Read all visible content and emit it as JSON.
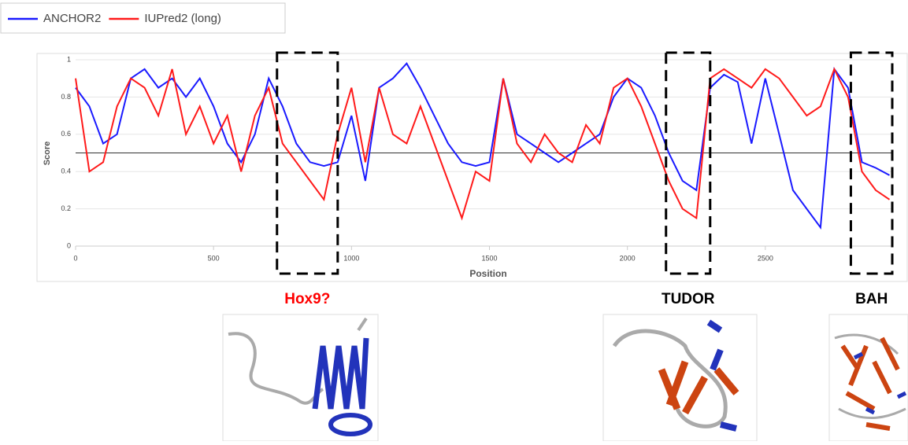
{
  "chart_data": {
    "type": "line",
    "x_label": "Position",
    "y_label": "Score",
    "x": [
      0,
      50,
      100,
      150,
      200,
      250,
      300,
      350,
      400,
      450,
      500,
      550,
      600,
      650,
      700,
      750,
      800,
      850,
      900,
      950,
      1000,
      1050,
      1100,
      1150,
      1200,
      1250,
      1300,
      1350,
      1400,
      1450,
      1500,
      1550,
      1600,
      1650,
      1700,
      1750,
      1800,
      1850,
      1900,
      1950,
      2000,
      2050,
      2100,
      2150,
      2200,
      2250,
      2300,
      2350,
      2400,
      2450,
      2500,
      2550,
      2600,
      2650,
      2700,
      2750,
      2800,
      2850,
      2900,
      2950
    ],
    "series": [
      {
        "name": "ANCHOR2",
        "color": "#1a1aff",
        "values": [
          0.85,
          0.75,
          0.55,
          0.6,
          0.9,
          0.95,
          0.85,
          0.9,
          0.8,
          0.9,
          0.75,
          0.55,
          0.45,
          0.6,
          0.9,
          0.75,
          0.55,
          0.45,
          0.43,
          0.45,
          0.7,
          0.35,
          0.85,
          0.9,
          0.98,
          0.85,
          0.7,
          0.55,
          0.45,
          0.43,
          0.45,
          0.9,
          0.6,
          0.55,
          0.5,
          0.45,
          0.5,
          0.55,
          0.6,
          0.8,
          0.9,
          0.85,
          0.7,
          0.5,
          0.35,
          0.3,
          0.85,
          0.92,
          0.88,
          0.55,
          0.9,
          0.6,
          0.3,
          0.2,
          0.1,
          0.95,
          0.85,
          0.45,
          0.42,
          0.38
        ]
      },
      {
        "name": "IUPred2 (long)",
        "color": "#ff1a1a",
        "values": [
          0.9,
          0.4,
          0.45,
          0.75,
          0.9,
          0.85,
          0.7,
          0.95,
          0.6,
          0.75,
          0.55,
          0.7,
          0.4,
          0.7,
          0.85,
          0.55,
          0.45,
          0.35,
          0.25,
          0.6,
          0.85,
          0.45,
          0.85,
          0.6,
          0.55,
          0.75,
          0.55,
          0.35,
          0.15,
          0.4,
          0.35,
          0.9,
          0.55,
          0.45,
          0.6,
          0.5,
          0.45,
          0.65,
          0.55,
          0.85,
          0.9,
          0.75,
          0.55,
          0.35,
          0.2,
          0.15,
          0.9,
          0.95,
          0.9,
          0.85,
          0.95,
          0.9,
          0.8,
          0.7,
          0.75,
          0.95,
          0.8,
          0.4,
          0.3,
          0.25
        ]
      }
    ],
    "xlim": [
      0,
      2960
    ],
    "ylim": [
      0,
      1
    ],
    "xticks": [
      0,
      500,
      1000,
      1500,
      2000,
      2500
    ],
    "yticks": [
      0,
      0.2,
      0.4,
      0.6,
      0.8,
      1
    ],
    "grid": true,
    "hline": 0.5,
    "annotations": [
      {
        "label": "Hox9?",
        "color": "#ff0000",
        "xrange": [
          730,
          950
        ]
      },
      {
        "label": "TUDOR",
        "color": "#000000",
        "xrange": [
          2140,
          2300
        ]
      },
      {
        "label": "BAH",
        "color": "#000000",
        "xrange": [
          2810,
          2960
        ]
      }
    ]
  }
}
